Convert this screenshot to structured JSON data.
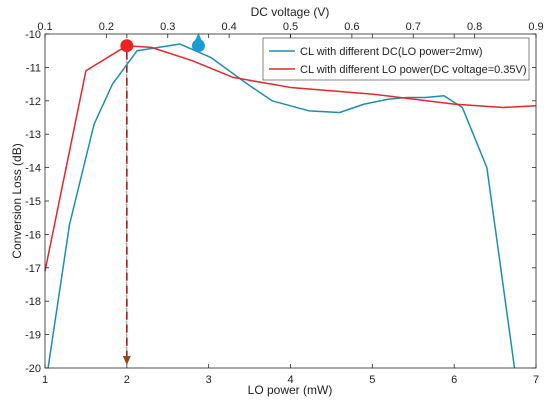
{
  "chart_data": {
    "type": "line",
    "title": "",
    "xlabel": "LO power (mW)",
    "ylabel": "Conversion Loss (dB)",
    "x2label": "DC voltage (V)",
    "xlim": [
      1,
      7
    ],
    "x2lim": [
      0.1,
      0.9
    ],
    "ylim": [
      -20,
      -10
    ],
    "xticks": [
      "1",
      "2",
      "3",
      "4",
      "5",
      "6",
      "7"
    ],
    "x2ticks": [
      "0.1",
      "0.2",
      "0.3",
      "0.4",
      "0.5",
      "0.6",
      "0.7",
      "0.8",
      "0.9"
    ],
    "yticks": [
      "-10",
      "-11",
      "-12",
      "-13",
      "-14",
      "-15",
      "-16",
      "-17",
      "-18",
      "-19",
      "-20"
    ],
    "grid": false,
    "legend_position": "top-right",
    "series": [
      {
        "name": "CL with different DC(LO power=2mw)",
        "color": "#1a8fb5",
        "axis": "top",
        "x": [
          0.105,
          0.14,
          0.18,
          0.21,
          0.25,
          0.32,
          0.37,
          0.43,
          0.47,
          0.53,
          0.58,
          0.62,
          0.66,
          0.69,
          0.72,
          0.75,
          0.78,
          0.82,
          0.865
        ],
        "y": [
          -20.0,
          -15.7,
          -12.7,
          -11.5,
          -10.5,
          -10.3,
          -10.7,
          -11.5,
          -12.0,
          -12.3,
          -12.35,
          -12.1,
          -11.95,
          -11.9,
          -11.9,
          -11.85,
          -12.2,
          -14.0,
          -20.0
        ]
      },
      {
        "name": "CL with different LO power(DC voltage=0.35V)",
        "color": "#e8262b",
        "axis": "bottom",
        "x": [
          1.0,
          1.5,
          2.0,
          2.3,
          2.8,
          3.3,
          4.0,
          5.0,
          6.0,
          6.6,
          7.0
        ],
        "y": [
          -17.1,
          -11.1,
          -10.35,
          -10.4,
          -10.8,
          -11.3,
          -11.6,
          -11.8,
          -12.1,
          -12.2,
          -12.15
        ]
      }
    ],
    "markers": [
      {
        "series": 0,
        "x": 0.35,
        "y": -10.35,
        "color": "#1a9bd4",
        "arrow": "up"
      },
      {
        "series": 1,
        "x": 2.0,
        "y": -10.35,
        "color": "#ee2222",
        "arrow": "down"
      }
    ]
  }
}
